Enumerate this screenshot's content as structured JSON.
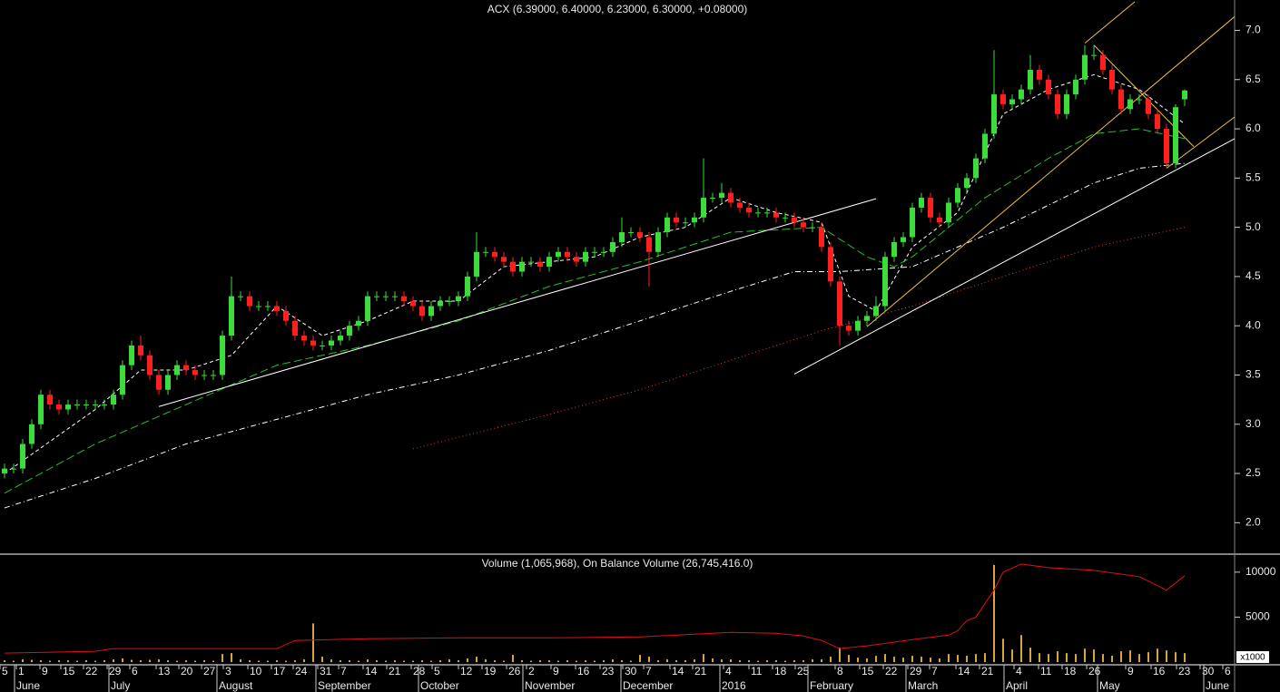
{
  "chart_data": [
    {
      "type": "candlestick",
      "title": "ACX (6.39000, 6.40000, 6.23000, 6.30000, +0.08000)",
      "xlim": [
        -0.5,
        135.5
      ],
      "ylim": [
        1.69,
        7.29
      ],
      "yticks": [
        {
          "value": 2,
          "label": "2.0"
        },
        2.5,
        {
          "value": 3,
          "label": "3.0"
        },
        3.5,
        {
          "value": 4,
          "label": "4.0"
        },
        4.5,
        {
          "value": 5,
          "label": "5.0"
        },
        5.5,
        {
          "value": 6,
          "label": "6.0"
        },
        6.5,
        {
          "value": 7,
          "label": "7.0"
        }
      ],
      "up_color": "#3ddc3d",
      "down_color": "#ff1f1f",
      "open": [
        2.5,
        2.55,
        2.55,
        2.8,
        3.0,
        3.3,
        3.2,
        3.15,
        3.2,
        3.2,
        3.2,
        3.2,
        3.2,
        3.3,
        3.6,
        3.8,
        3.7,
        3.5,
        3.35,
        3.5,
        3.6,
        3.55,
        3.5,
        3.5,
        3.5,
        3.9,
        4.3,
        4.3,
        4.2,
        4.2,
        4.2,
        4.15,
        4.05,
        3.9,
        3.85,
        3.8,
        3.8,
        3.85,
        3.9,
        4.0,
        4.05,
        4.3,
        4.3,
        4.3,
        4.3,
        4.25,
        4.2,
        4.1,
        4.2,
        4.25,
        4.25,
        4.3,
        4.5,
        4.75,
        4.75,
        4.7,
        4.65,
        4.55,
        4.65,
        4.65,
        4.6,
        4.7,
        4.75,
        4.7,
        4.65,
        4.75,
        4.75,
        4.75,
        4.85,
        4.95,
        4.95,
        4.9,
        4.75,
        4.95,
        5.1,
        5.05,
        5.05,
        5.1,
        5.3,
        5.3,
        5.35,
        5.25,
        5.2,
        5.15,
        5.15,
        5.15,
        5.1,
        5.1,
        5.05,
        5.0,
        5.0,
        4.8,
        4.45,
        4.0,
        3.95,
        4.05,
        4.1,
        4.2,
        4.7,
        4.85,
        4.9,
        5.2,
        5.3,
        5.1,
        5.05,
        5.25,
        5.4,
        5.5,
        5.7,
        5.95,
        6.35,
        6.25,
        6.3,
        6.4,
        6.6,
        6.5,
        6.35,
        6.15,
        6.35,
        6.5,
        6.75,
        6.75,
        6.6,
        6.4,
        6.2,
        6.3,
        6.3,
        6.15,
        6.0,
        5.65,
        6.39
      ],
      "high": [
        2.6,
        2.6,
        2.85,
        3.05,
        3.35,
        3.35,
        3.25,
        3.25,
        3.25,
        3.25,
        3.25,
        3.25,
        3.35,
        3.65,
        3.85,
        3.9,
        3.75,
        3.55,
        3.55,
        3.65,
        3.65,
        3.6,
        3.55,
        3.55,
        3.95,
        4.5,
        4.35,
        4.35,
        4.25,
        4.25,
        4.25,
        4.2,
        4.1,
        3.95,
        3.9,
        3.85,
        3.9,
        3.95,
        4.05,
        4.1,
        4.35,
        4.35,
        4.35,
        4.35,
        4.35,
        4.3,
        4.25,
        4.25,
        4.3,
        4.3,
        4.35,
        4.55,
        4.95,
        4.8,
        4.8,
        4.75,
        4.7,
        4.7,
        4.7,
        4.7,
        4.75,
        4.8,
        4.8,
        4.75,
        4.8,
        4.8,
        4.8,
        4.9,
        5.1,
        5.0,
        5.0,
        4.95,
        5.0,
        5.15,
        5.15,
        5.1,
        5.15,
        5.7,
        5.35,
        5.45,
        5.4,
        5.3,
        5.25,
        5.2,
        5.2,
        5.2,
        5.15,
        5.15,
        5.1,
        5.05,
        5.05,
        4.85,
        4.5,
        4.05,
        4.1,
        4.15,
        4.3,
        4.75,
        4.9,
        4.95,
        5.25,
        5.35,
        5.35,
        5.15,
        5.3,
        5.45,
        5.55,
        5.75,
        6.0,
        6.8,
        6.4,
        6.35,
        6.45,
        6.75,
        6.65,
        6.55,
        6.4,
        6.4,
        6.55,
        6.85,
        6.85,
        6.8,
        6.65,
        6.45,
        6.35,
        6.35,
        6.35,
        6.2,
        6.05,
        6.25,
        6.4
      ],
      "low": [
        2.45,
        2.5,
        2.5,
        2.75,
        2.95,
        3.15,
        3.1,
        3.1,
        3.15,
        3.15,
        3.15,
        3.15,
        3.15,
        3.25,
        3.55,
        3.65,
        3.45,
        3.3,
        3.3,
        3.45,
        3.5,
        3.45,
        3.45,
        3.45,
        3.45,
        3.85,
        4.25,
        4.15,
        4.15,
        4.15,
        4.1,
        4.0,
        3.85,
        3.8,
        3.75,
        3.75,
        3.75,
        3.8,
        3.85,
        3.95,
        4.0,
        4.25,
        4.25,
        4.25,
        4.2,
        4.15,
        4.05,
        4.05,
        4.15,
        4.2,
        4.2,
        4.25,
        4.45,
        4.7,
        4.65,
        4.6,
        4.5,
        4.5,
        4.6,
        4.55,
        4.55,
        4.65,
        4.65,
        4.6,
        4.6,
        4.7,
        4.7,
        4.7,
        4.8,
        4.9,
        4.85,
        4.4,
        4.7,
        4.9,
        5.0,
        5.0,
        5.0,
        5.05,
        5.25,
        5.25,
        5.2,
        5.15,
        5.1,
        5.1,
        5.1,
        5.05,
        5.05,
        5.0,
        4.95,
        4.95,
        4.75,
        4.4,
        3.8,
        3.9,
        3.9,
        4.0,
        4.05,
        4.15,
        4.65,
        4.8,
        4.85,
        5.15,
        5.05,
        5.0,
        5.0,
        5.2,
        5.35,
        5.45,
        5.65,
        5.9,
        6.2,
        6.2,
        6.25,
        6.35,
        6.45,
        6.3,
        6.1,
        6.1,
        6.3,
        6.45,
        6.7,
        6.55,
        6.35,
        6.15,
        6.15,
        6.25,
        6.1,
        5.95,
        5.6,
        5.6,
        6.23
      ],
      "close": [
        2.55,
        2.55,
        2.8,
        3.0,
        3.3,
        3.2,
        3.15,
        3.2,
        3.2,
        3.2,
        3.2,
        3.2,
        3.3,
        3.6,
        3.8,
        3.7,
        3.5,
        3.35,
        3.5,
        3.6,
        3.55,
        3.5,
        3.5,
        3.5,
        3.9,
        4.3,
        4.3,
        4.2,
        4.2,
        4.2,
        4.15,
        4.05,
        3.9,
        3.85,
        3.8,
        3.8,
        3.85,
        3.9,
        4.0,
        4.05,
        4.3,
        4.3,
        4.3,
        4.3,
        4.25,
        4.2,
        4.1,
        4.2,
        4.25,
        4.25,
        4.3,
        4.5,
        4.75,
        4.75,
        4.7,
        4.65,
        4.55,
        4.65,
        4.65,
        4.6,
        4.7,
        4.75,
        4.7,
        4.65,
        4.75,
        4.75,
        4.75,
        4.85,
        4.95,
        4.95,
        4.9,
        4.75,
        4.95,
        5.1,
        5.05,
        5.05,
        5.1,
        5.3,
        5.3,
        5.35,
        5.25,
        5.2,
        5.15,
        5.15,
        5.15,
        5.1,
        5.1,
        5.05,
        5.0,
        5.0,
        4.8,
        4.45,
        4.0,
        3.95,
        4.05,
        4.1,
        4.2,
        4.7,
        4.85,
        4.9,
        5.2,
        5.3,
        5.1,
        5.05,
        5.25,
        5.4,
        5.5,
        5.7,
        5.95,
        6.35,
        6.25,
        6.3,
        6.4,
        6.6,
        6.5,
        6.35,
        6.15,
        6.35,
        6.5,
        6.75,
        6.75,
        6.6,
        6.4,
        6.2,
        6.3,
        6.3,
        6.15,
        6.0,
        5.65,
        6.22,
        6.3
      ],
      "overlays": [
        {
          "x": [
            0,
            10,
            15,
            20,
            25,
            30,
            35,
            40,
            45,
            50,
            55,
            60,
            65,
            70,
            75,
            80,
            85,
            90,
            93,
            96,
            100,
            105,
            110,
            115,
            120,
            125,
            130
          ],
          "values": [
            2.5,
            3.15,
            3.55,
            3.55,
            3.7,
            4.2,
            3.9,
            4.05,
            4.25,
            4.25,
            4.6,
            4.65,
            4.7,
            4.9,
            5.0,
            5.3,
            5.15,
            5.05,
            4.3,
            4.15,
            4.8,
            5.15,
            6.15,
            6.4,
            6.55,
            6.4,
            6.05
          ],
          "color": "#ffffff",
          "style": "dashed"
        },
        {
          "x": [
            0,
            10,
            15,
            25,
            30,
            40,
            50,
            60,
            70,
            80,
            90,
            95,
            98,
            100,
            108,
            115,
            120,
            125,
            130
          ],
          "values": [
            2.3,
            2.8,
            3.0,
            3.4,
            3.6,
            3.8,
            4.05,
            4.4,
            4.65,
            4.95,
            5.0,
            4.7,
            4.6,
            4.7,
            5.3,
            5.7,
            5.95,
            6.0,
            5.9
          ],
          "color": "#22c322",
          "style": "longdash"
        },
        {
          "x": [
            0,
            10,
            20,
            30,
            40,
            50,
            60,
            70,
            80,
            87,
            92,
            100,
            110,
            120,
            125,
            130
          ],
          "values": [
            2.15,
            2.45,
            2.8,
            3.05,
            3.3,
            3.5,
            3.75,
            4.05,
            4.35,
            4.55,
            4.55,
            4.6,
            5.0,
            5.45,
            5.6,
            5.65
          ],
          "color": "#ffffff",
          "style": "dashdot"
        },
        {
          "x": [
            45,
            60,
            70,
            80,
            90,
            100,
            110,
            120,
            130
          ],
          "values": [
            2.75,
            3.1,
            3.35,
            3.65,
            3.95,
            4.2,
            4.5,
            4.8,
            5.0
          ],
          "color": "#e0401a",
          "style": "dotted"
        }
      ],
      "trendlines": [
        {
          "x": [
            17,
            96
          ],
          "y": [
            3.18,
            5.29
          ],
          "color": "#ffffff"
        },
        {
          "x": [
            87,
            135.5
          ],
          "y": [
            3.51,
            5.9
          ],
          "color": "#ffffff"
        },
        {
          "x": [
            95,
            135.5
          ],
          "y": [
            3.99,
            7.14
          ],
          "color": "#e8c040"
        },
        {
          "x": [
            119,
            124.5
          ],
          "y": [
            6.87,
            7.29
          ],
          "color": "#e8c040"
        },
        {
          "x": [
            120,
            131
          ],
          "y": [
            6.85,
            5.82
          ],
          "color": "#e8c040"
        },
        {
          "x": [
            128,
            135.5
          ],
          "y": [
            5.6,
            6.12
          ],
          "color": "#e8c040"
        }
      ]
    },
    {
      "type": "bar",
      "title": "Volume (1,065,968), On Balance Volume (26,745,416.0)",
      "axis_multiplier": "x1000",
      "xlim": [
        -0.5,
        135.5
      ],
      "ylim": [
        -300,
        11800
      ],
      "yticks": [
        5000,
        10000
      ],
      "color": "#d9a441",
      "values": [
        200,
        150,
        300,
        250,
        200,
        150,
        200,
        200,
        150,
        200,
        150,
        200,
        300,
        400,
        250,
        200,
        250,
        300,
        200,
        150,
        200,
        150,
        200,
        150,
        900,
        1000,
        300,
        200,
        150,
        150,
        200,
        150,
        200,
        300,
        4300,
        600,
        300,
        200,
        200,
        150,
        300,
        200,
        150,
        200,
        150,
        150,
        200,
        150,
        200,
        300,
        200,
        400,
        600,
        300,
        200,
        150,
        800,
        200,
        150,
        200,
        200,
        150,
        200,
        150,
        200,
        150,
        200,
        300,
        200,
        150,
        800,
        600,
        200,
        300,
        200,
        200,
        300,
        900,
        400,
        300,
        300,
        200,
        200,
        150,
        200,
        200,
        150,
        200,
        200,
        300,
        300,
        600,
        1600,
        800,
        500,
        400,
        700,
        900,
        600,
        500,
        700,
        600,
        500,
        400,
        900,
        800,
        700,
        900,
        1000,
        10800,
        2600,
        1400,
        3000,
        1600,
        1000,
        900,
        1200,
        1000,
        900,
        1500,
        1400,
        900,
        700,
        1200,
        1300,
        900,
        1100,
        1500,
        1300,
        1100,
        1000
      ],
      "overlays": [
        {
          "x": [
            0,
            10,
            12,
            20,
            30,
            32,
            40,
            50,
            60,
            70,
            80,
            85,
            88,
            90,
            92,
            95,
            100,
            104,
            105,
            106,
            107,
            109,
            110,
            112,
            115,
            120,
            125,
            128,
            130
          ],
          "values": [
            1000,
            1200,
            1500,
            1500,
            1500,
            2400,
            2600,
            2700,
            2700,
            2800,
            3300,
            3200,
            2900,
            2400,
            1500,
            1800,
            2500,
            3000,
            3500,
            4600,
            5000,
            8000,
            10000,
            10900,
            10500,
            10200,
            9500,
            8000,
            9600
          ],
          "color": "#e01010",
          "style": "solid"
        }
      ],
      "xticks": [
        {
          "value": -0.5,
          "label": "5"
        },
        {
          "value": 1.3,
          "label": "1"
        },
        {
          "value": 3.9,
          "label": "9"
        },
        {
          "value": 6.2,
          "label": "15"
        },
        {
          "value": 8.7,
          "label": "22"
        },
        {
          "value": 11.3,
          "label": "29"
        },
        {
          "value": 13.8,
          "label": "6"
        },
        {
          "value": 16.7,
          "label": "13"
        },
        {
          "value": 19.2,
          "label": "20"
        },
        {
          "value": 21.7,
          "label": "27"
        },
        {
          "value": 24.1,
          "label": "3"
        },
        {
          "value": 26.8,
          "label": "10"
        },
        {
          "value": 29.4,
          "label": "17"
        },
        {
          "value": 31.8,
          "label": "24"
        },
        {
          "value": 34.5,
          "label": "31"
        },
        {
          "value": 36.8,
          "label": "7"
        },
        {
          "value": 39.5,
          "label": "14"
        },
        {
          "value": 42.1,
          "label": "21"
        },
        {
          "value": 44.8,
          "label": "28"
        },
        {
          "value": 47.1,
          "label": "5"
        },
        {
          "value": 50,
          "label": "12"
        },
        {
          "value": 52.6,
          "label": "19"
        },
        {
          "value": 55.3,
          "label": "26"
        },
        {
          "value": 57.5,
          "label": "2"
        },
        {
          "value": 60.2,
          "label": "9"
        },
        {
          "value": 62.9,
          "label": "16"
        },
        {
          "value": 65.6,
          "label": "23"
        },
        {
          "value": 68.1,
          "label": "30"
        },
        {
          "value": 70.4,
          "label": "7"
        },
        {
          "value": 73.3,
          "label": "14"
        },
        {
          "value": 75.8,
          "label": "21"
        },
        {
          "value": 79.2,
          "label": "4"
        },
        {
          "value": 82,
          "label": "11"
        },
        {
          "value": 84.6,
          "label": "18"
        },
        {
          "value": 87.1,
          "label": "25"
        },
        {
          "value": 91.5,
          "label": "8"
        },
        {
          "value": 94.2,
          "label": "15"
        },
        {
          "value": 96.8,
          "label": "22"
        },
        {
          "value": 99.5,
          "label": "29"
        },
        {
          "value": 101.9,
          "label": "7"
        },
        {
          "value": 104.8,
          "label": "14"
        },
        {
          "value": 107.4,
          "label": "21"
        },
        {
          "value": 111.2,
          "label": "4"
        },
        {
          "value": 113.9,
          "label": "11"
        },
        {
          "value": 116.5,
          "label": "18"
        },
        {
          "value": 119.2,
          "label": "26"
        },
        {
          "value": 123.5,
          "label": "9"
        },
        {
          "value": 126.3,
          "label": "16"
        },
        {
          "value": 129.1,
          "label": "23"
        },
        {
          "value": 131.7,
          "label": "30"
        },
        {
          "value": 134.2,
          "label": "6"
        }
      ],
      "month_ticks": [
        {
          "value": 1.1,
          "label": "June"
        },
        {
          "value": 11.5,
          "label": "July"
        },
        {
          "value": 23.4,
          "label": "August"
        },
        {
          "value": 34.3,
          "label": "September"
        },
        {
          "value": 45.6,
          "label": "October"
        },
        {
          "value": 57.1,
          "label": "November"
        },
        {
          "value": 67.9,
          "label": "December"
        },
        {
          "value": 78.8,
          "label": "2016"
        },
        {
          "value": 88.5,
          "label": "February"
        },
        {
          "value": 99.3,
          "label": "March"
        },
        {
          "value": 110.1,
          "label": "April"
        },
        {
          "value": 120.4,
          "label": "May"
        },
        {
          "value": 132.1,
          "label": "June"
        }
      ]
    }
  ]
}
